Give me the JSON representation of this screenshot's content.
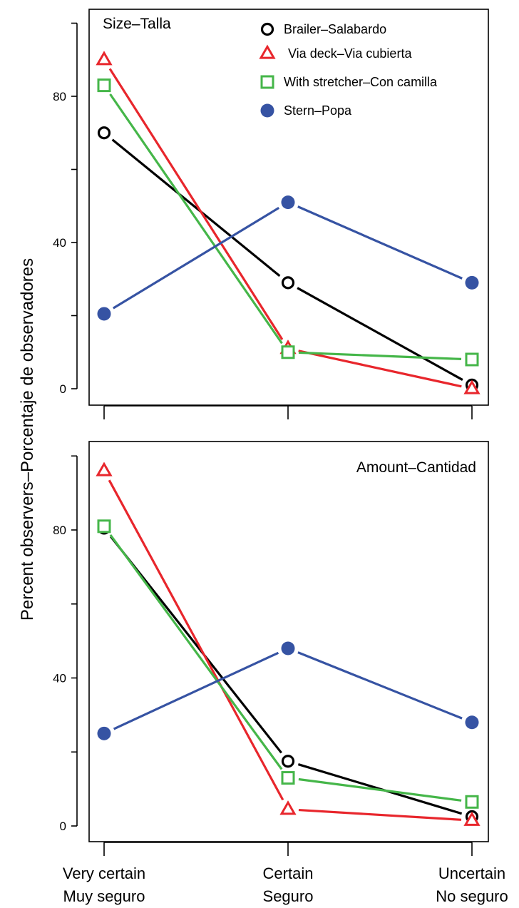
{
  "chart_data": [
    {
      "type": "line",
      "title": "Size–Talla",
      "ylabel": "Percent observers–Porcentaje de observadores",
      "ylim": [
        -4,
        104
      ],
      "yticks": [
        "0",
        "40",
        "80"
      ],
      "ytick_values": [
        0,
        40,
        80
      ],
      "categories": [
        {
          "line1": "Very certain",
          "line2": "Muy seguro"
        },
        {
          "line1": "Certain",
          "line2": "Seguro"
        },
        {
          "line1": "Uncertain",
          "line2": "No seguro"
        }
      ],
      "legend_position": "top-right",
      "series": [
        {
          "name": "Brailer–Salabardo",
          "color": "#000000",
          "marker": "circle-open",
          "values": [
            70,
            29,
            1
          ]
        },
        {
          "name": "Via deck–Via cubierta",
          "color": "#e8262c",
          "marker": "triangle-open",
          "values": [
            90,
            11,
            0
          ]
        },
        {
          "name": "With stretcher–Con camilla",
          "color": "#45b649",
          "marker": "square-open",
          "values": [
            83,
            10,
            8
          ]
        },
        {
          "name": "Stern–Popa",
          "color": "#3653a3",
          "marker": "circle-filled",
          "values": [
            20.5,
            51,
            29
          ]
        }
      ]
    },
    {
      "type": "line",
      "title": "Amount–Cantidad",
      "ylabel": "Percent observers–Porcentaje de observadores",
      "ylim": [
        -4,
        104
      ],
      "yticks": [
        "0",
        "40",
        "80"
      ],
      "ytick_values": [
        0,
        40,
        80
      ],
      "categories": [
        {
          "line1": "Very certain",
          "line2": "Muy seguro"
        },
        {
          "line1": "Certain",
          "line2": "Seguro"
        },
        {
          "line1": "Uncertain",
          "line2": "No seguro"
        }
      ],
      "series": [
        {
          "name": "Brailer–Salabardo",
          "color": "#000000",
          "marker": "circle-open",
          "values": [
            80.5,
            17.5,
            2.5
          ]
        },
        {
          "name": "Via deck–Via cubierta",
          "color": "#e8262c",
          "marker": "triangle-open",
          "values": [
            96,
            4.5,
            1.5
          ]
        },
        {
          "name": "With stretcher–Con camilla",
          "color": "#45b649",
          "marker": "square-open",
          "values": [
            81,
            13,
            6.5
          ]
        },
        {
          "name": "Stern–Popa",
          "color": "#3653a3",
          "marker": "circle-filled",
          "values": [
            25,
            48,
            28
          ]
        }
      ]
    }
  ]
}
